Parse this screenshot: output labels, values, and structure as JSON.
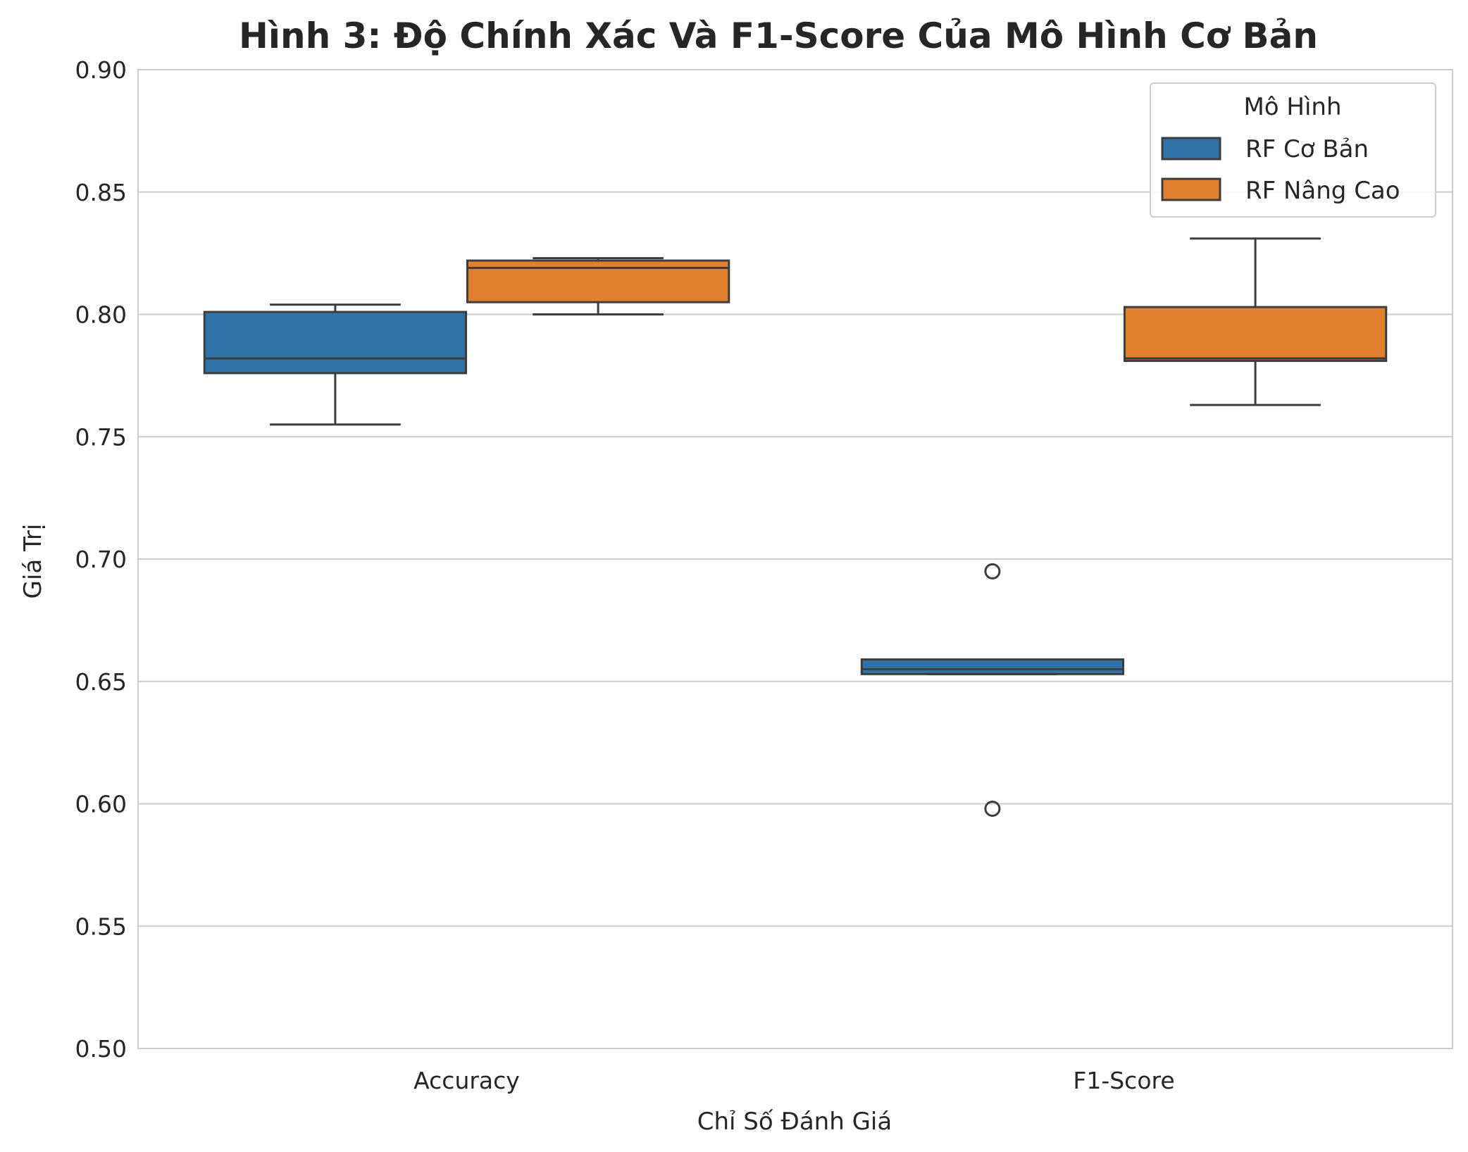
{
  "chart_data": {
    "type": "box",
    "title": "Hình 3: Độ Chính Xác Và F1-Score Của Mô Hình Cơ Bản",
    "xlabel": "Chỉ Số Đánh Giá",
    "ylabel": "Giá Trị",
    "ylim": [
      0.5,
      0.9
    ],
    "yticks": [
      0.5,
      0.55,
      0.6,
      0.65,
      0.7,
      0.75,
      0.8,
      0.85,
      0.9
    ],
    "ytick_labels": [
      "0.50",
      "0.55",
      "0.60",
      "0.65",
      "0.70",
      "0.75",
      "0.80",
      "0.85",
      "0.90"
    ],
    "grid": "horizontal",
    "categories": [
      "Accuracy",
      "F1-Score"
    ],
    "legend": {
      "title": "Mô Hình",
      "placement": "top-right"
    },
    "series": [
      {
        "name": "RF Cơ Bản",
        "color": "#2f73a8",
        "boxes": [
          {
            "whisker_low": 0.755,
            "q1": 0.776,
            "median": 0.782,
            "q3": 0.801,
            "whisker_high": 0.804,
            "outliers": []
          },
          {
            "whisker_low": 0.653,
            "q1": 0.653,
            "median": 0.655,
            "q3": 0.659,
            "whisker_high": 0.659,
            "outliers": [
              0.695,
              0.598
            ]
          }
        ]
      },
      {
        "name": "RF Nâng Cao",
        "color": "#e1802c",
        "boxes": [
          {
            "whisker_low": 0.8,
            "q1": 0.805,
            "median": 0.819,
            "q3": 0.822,
            "whisker_high": 0.823,
            "outliers": []
          },
          {
            "whisker_low": 0.763,
            "q1": 0.781,
            "median": 0.782,
            "q3": 0.803,
            "whisker_high": 0.831,
            "outliers": []
          }
        ]
      }
    ]
  }
}
